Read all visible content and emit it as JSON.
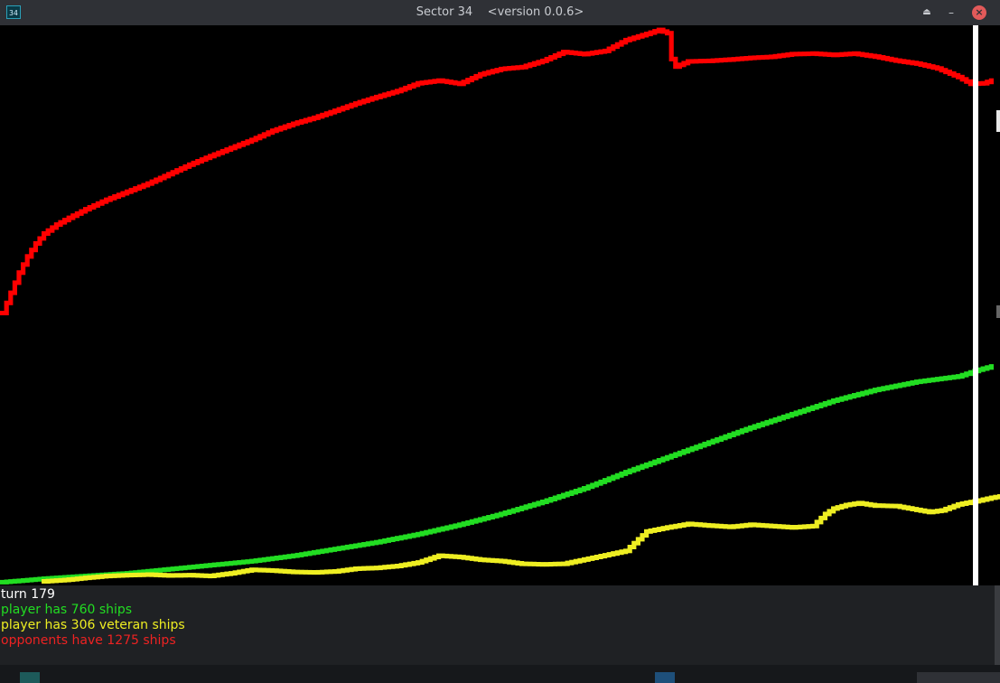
{
  "window": {
    "icon_label": "34",
    "title": "Sector 34    <version 0.0.6>",
    "buttons": {
      "keep_above_icon": "eject-icon",
      "minimize_icon": "minus-icon",
      "close_icon": "close-icon"
    }
  },
  "chart_data": {
    "type": "line",
    "current_turn": 179,
    "series": [
      {
        "name": "opponents",
        "color": "#ff0000",
        "points": [
          [
            0,
            1000
          ],
          [
            2,
            1075
          ],
          [
            4,
            1150
          ],
          [
            6,
            1210
          ],
          [
            8,
            1258
          ],
          [
            10,
            1295
          ],
          [
            13,
            1328
          ],
          [
            16,
            1353
          ],
          [
            20,
            1385
          ],
          [
            25,
            1420
          ],
          [
            30,
            1450
          ],
          [
            35,
            1480
          ],
          [
            40,
            1515
          ],
          [
            45,
            1550
          ],
          [
            50,
            1582
          ],
          [
            55,
            1612
          ],
          [
            60,
            1642
          ],
          [
            65,
            1676
          ],
          [
            70,
            1702
          ],
          [
            75,
            1724
          ],
          [
            80,
            1750
          ],
          [
            85,
            1777
          ],
          [
            90,
            1801
          ],
          [
            95,
            1823
          ],
          [
            100,
            1852
          ],
          [
            105,
            1862
          ],
          [
            110,
            1850
          ],
          [
            115,
            1885
          ],
          [
            120,
            1905
          ],
          [
            125,
            1912
          ],
          [
            130,
            1935
          ],
          [
            135,
            1968
          ],
          [
            140,
            1960
          ],
          [
            145,
            1972
          ],
          [
            150,
            2012
          ],
          [
            155,
            2035
          ],
          [
            158,
            2050
          ],
          [
            160,
            2038
          ],
          [
            161,
            1942
          ],
          [
            162,
            1914
          ],
          [
            165,
            1933
          ],
          [
            170,
            1935
          ],
          [
            175,
            1940
          ],
          [
            180,
            1946
          ],
          [
            185,
            1950
          ],
          [
            190,
            1960
          ],
          [
            195,
            1962
          ],
          [
            200,
            1957
          ],
          [
            205,
            1962
          ],
          [
            210,
            1951
          ],
          [
            215,
            1936
          ],
          [
            220,
            1925
          ],
          [
            225,
            1907
          ],
          [
            230,
            1875
          ],
          [
            233,
            1850
          ],
          [
            236,
            1852
          ],
          [
            238,
            1862
          ]
        ]
      },
      {
        "name": "player",
        "color": "#22dd22",
        "points": [
          [
            0,
            2
          ],
          [
            10,
            15
          ],
          [
            20,
            25
          ],
          [
            30,
            35
          ],
          [
            40,
            50
          ],
          [
            50,
            65
          ],
          [
            60,
            80
          ],
          [
            70,
            100
          ],
          [
            80,
            125
          ],
          [
            90,
            150
          ],
          [
            100,
            180
          ],
          [
            110,
            215
          ],
          [
            120,
            255
          ],
          [
            130,
            300
          ],
          [
            140,
            350
          ],
          [
            150,
            410
          ],
          [
            160,
            465
          ],
          [
            170,
            520
          ],
          [
            180,
            575
          ],
          [
            190,
            625
          ],
          [
            200,
            675
          ],
          [
            210,
            715
          ],
          [
            220,
            745
          ],
          [
            230,
            765
          ],
          [
            235,
            790
          ],
          [
            238,
            802
          ]
        ]
      },
      {
        "name": "veteran",
        "color": "#eeee22",
        "points": [
          [
            10,
            5
          ],
          [
            15,
            10
          ],
          [
            20,
            18
          ],
          [
            25,
            25
          ],
          [
            30,
            28
          ],
          [
            35,
            30
          ],
          [
            40,
            27
          ],
          [
            45,
            28
          ],
          [
            50,
            25
          ],
          [
            55,
            35
          ],
          [
            60,
            48
          ],
          [
            65,
            45
          ],
          [
            70,
            40
          ],
          [
            75,
            38
          ],
          [
            80,
            42
          ],
          [
            85,
            52
          ],
          [
            90,
            55
          ],
          [
            95,
            62
          ],
          [
            100,
            75
          ],
          [
            105,
            100
          ],
          [
            110,
            95
          ],
          [
            115,
            85
          ],
          [
            120,
            80
          ],
          [
            125,
            70
          ],
          [
            130,
            68
          ],
          [
            135,
            70
          ],
          [
            150,
            118
          ],
          [
            155,
            190
          ],
          [
            160,
            205
          ],
          [
            165,
            218
          ],
          [
            170,
            212
          ],
          [
            175,
            207
          ],
          [
            180,
            215
          ],
          [
            185,
            210
          ],
          [
            190,
            205
          ],
          [
            195,
            210
          ],
          [
            198,
            255
          ],
          [
            200,
            275
          ],
          [
            203,
            288
          ],
          [
            206,
            295
          ],
          [
            210,
            286
          ],
          [
            215,
            284
          ],
          [
            220,
            270
          ],
          [
            223,
            262
          ],
          [
            226,
            268
          ],
          [
            230,
            290
          ],
          [
            235,
            305
          ],
          [
            238,
            315
          ],
          [
            240,
            320
          ]
        ]
      }
    ]
  },
  "info": {
    "turn": "turn 179",
    "player": "player has 760 ships",
    "veteran": "player has 306 veteran ships",
    "opponents": "opponents have 1275 ships"
  }
}
